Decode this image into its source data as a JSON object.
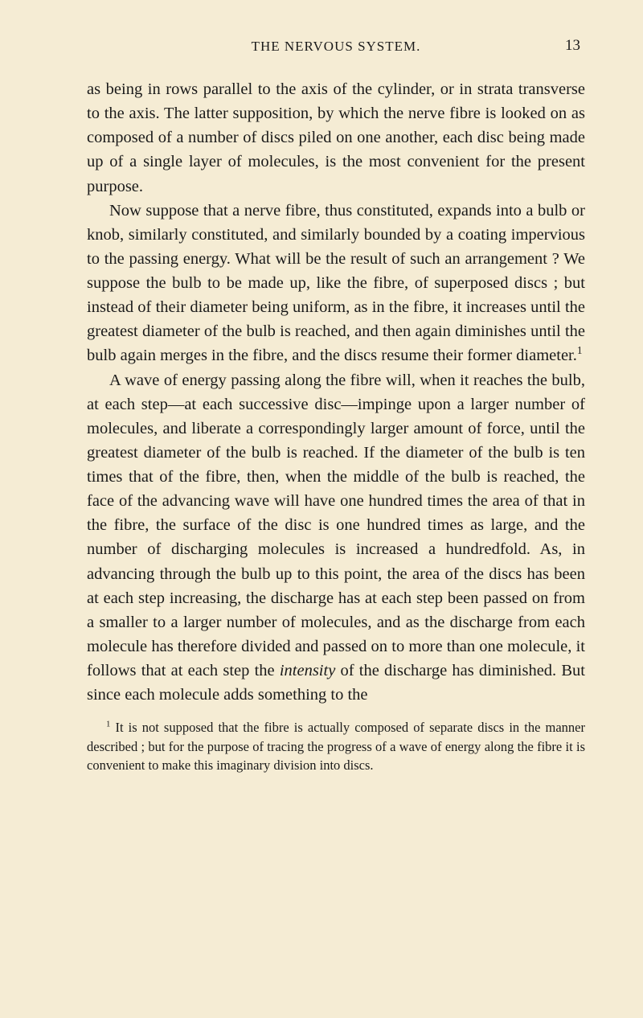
{
  "page": {
    "header_title": "THE NERVOUS SYSTEM.",
    "page_number": "13"
  },
  "paragraphs": {
    "p1": "as being in rows parallel to the axis of the cylinder, or in strata transverse to the axis. The latter supposition, by which the nerve fibre is looked on as composed of a number of discs piled on one another, each disc being made up of a single layer of molecules, is the most convenient for the present purpose.",
    "p2_part1": "Now suppose that a nerve fibre, thus constituted, expands into a bulb or knob, similarly constituted, and similarly bounded by a coating impervious to the passing energy. What will be the result of such an arrangement ? We suppose the bulb to be made up, like the fibre, of superposed discs ; but instead of their diameter being uniform, as in the fibre, it increases until the greatest diameter of the bulb is reached, and then again diminishes until the bulb again merges in the fibre, and the discs resume their former diameter.",
    "p2_sup": "1",
    "p3_part1": "A wave of energy passing along the fibre will, when it reaches the bulb, at each step—at each successive disc—impinge upon a larger number of molecules, and liberate a correspondingly larger amount of force, until the greatest diameter of the bulb is reached. If the diameter of the bulb is ten times that of the fibre, then, when the middle of the bulb is reached, the face of the advancing wave will have one hun­dred times the area of that in the fibre, the surface of the disc is one hundred times as large, and the number of dis­charging molecules is increased a hundredfold. As, in advancing through the bulb up to this point, the area of the discs has been at each step increasing, the discharge has at each step been passed on from a smaller to a larger number of molecules, and as the discharge from each molecule has therefore divided and passed on to more than one molecule, it follows that at each step the ",
    "p3_italic": "intensity",
    "p3_part2": " of the discharge has diminished. But since each molecule adds something to the"
  },
  "footnote": {
    "marker": "1",
    "text": " It is not supposed that the fibre is actually composed of separate discs in the manner described ; but for the purpose of tracing the progress of a wave of energy along the fibre it is convenient to make this imaginary division into discs."
  },
  "colors": {
    "background": "#f5ecd4",
    "text": "#1a1a1a"
  },
  "typography": {
    "body_fontsize": 20.5,
    "header_fontsize": 17,
    "footnote_fontsize": 16.5,
    "line_height": 1.47,
    "font_family": "Georgia, Times New Roman, serif"
  }
}
